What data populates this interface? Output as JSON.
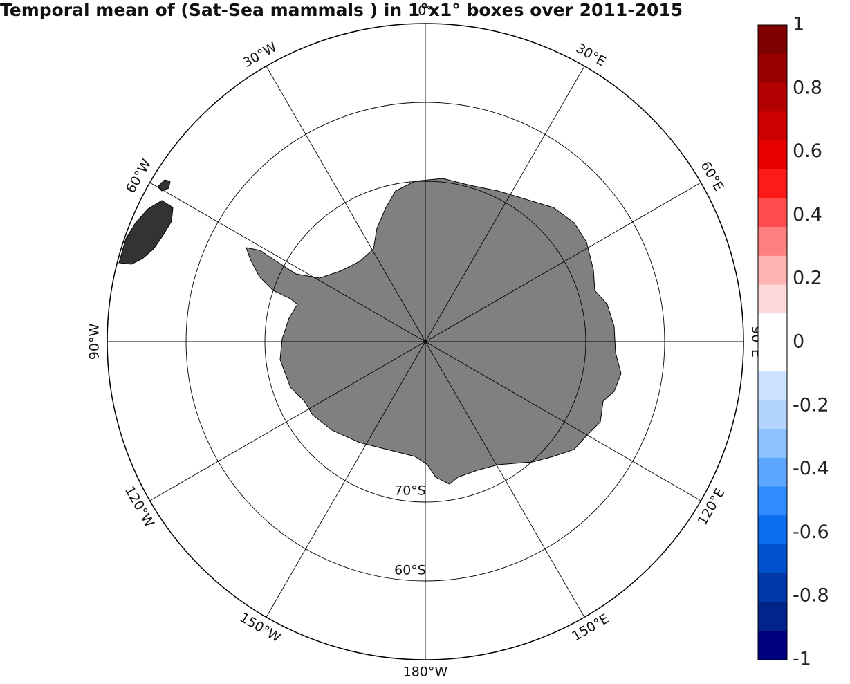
{
  "title": "Temporal mean of (Sat-Sea mammals ) in 1°x1° boxes over 2011-2015",
  "map": {
    "projection": "south polar stereographic",
    "lat_min": -50,
    "meridian_labels": [
      {
        "lon": 0,
        "text": "0°"
      },
      {
        "lon": 30,
        "text": "30°E"
      },
      {
        "lon": 60,
        "text": "60°E"
      },
      {
        "lon": 90,
        "text": "90°E"
      },
      {
        "lon": 120,
        "text": "120°E"
      },
      {
        "lon": 150,
        "text": "150°E"
      },
      {
        "lon": 180,
        "text": "180°W"
      },
      {
        "lon": -150,
        "text": "150°W"
      },
      {
        "lon": -120,
        "text": "120°W"
      },
      {
        "lon": -90,
        "text": "90°W"
      },
      {
        "lon": -60,
        "text": "60°W"
      },
      {
        "lon": -30,
        "text": "30°W"
      }
    ],
    "parallel_labels": [
      {
        "lat": -70,
        "text": "70°S"
      },
      {
        "lat": -60,
        "text": "60°S"
      }
    ],
    "parallels": [
      -60,
      -70,
      -80
    ],
    "land_color": "#808080",
    "grid_color": "#000000"
  },
  "colorbar": {
    "min": -1,
    "max": 1,
    "tick_labels": [
      "1",
      "0.8",
      "0.6",
      "0.4",
      "0.2",
      "0",
      "-0.2",
      "-0.4",
      "-0.6",
      "-0.8",
      "-1"
    ],
    "colors_top_to_bottom": [
      "#7f0000",
      "#990000",
      "#b30000",
      "#cc0000",
      "#e60000",
      "#ff1a1a",
      "#ff4d4d",
      "#ff8080",
      "#ffb3b3",
      "#ffd9d9",
      "#ffffff",
      "#ffffff",
      "#cce3ff",
      "#b3d4ff",
      "#8cc0ff",
      "#5ca6ff",
      "#2e8cff",
      "#0a6ef0",
      "#0050cc",
      "#0038a8",
      "#00248a",
      "#000080"
    ]
  }
}
